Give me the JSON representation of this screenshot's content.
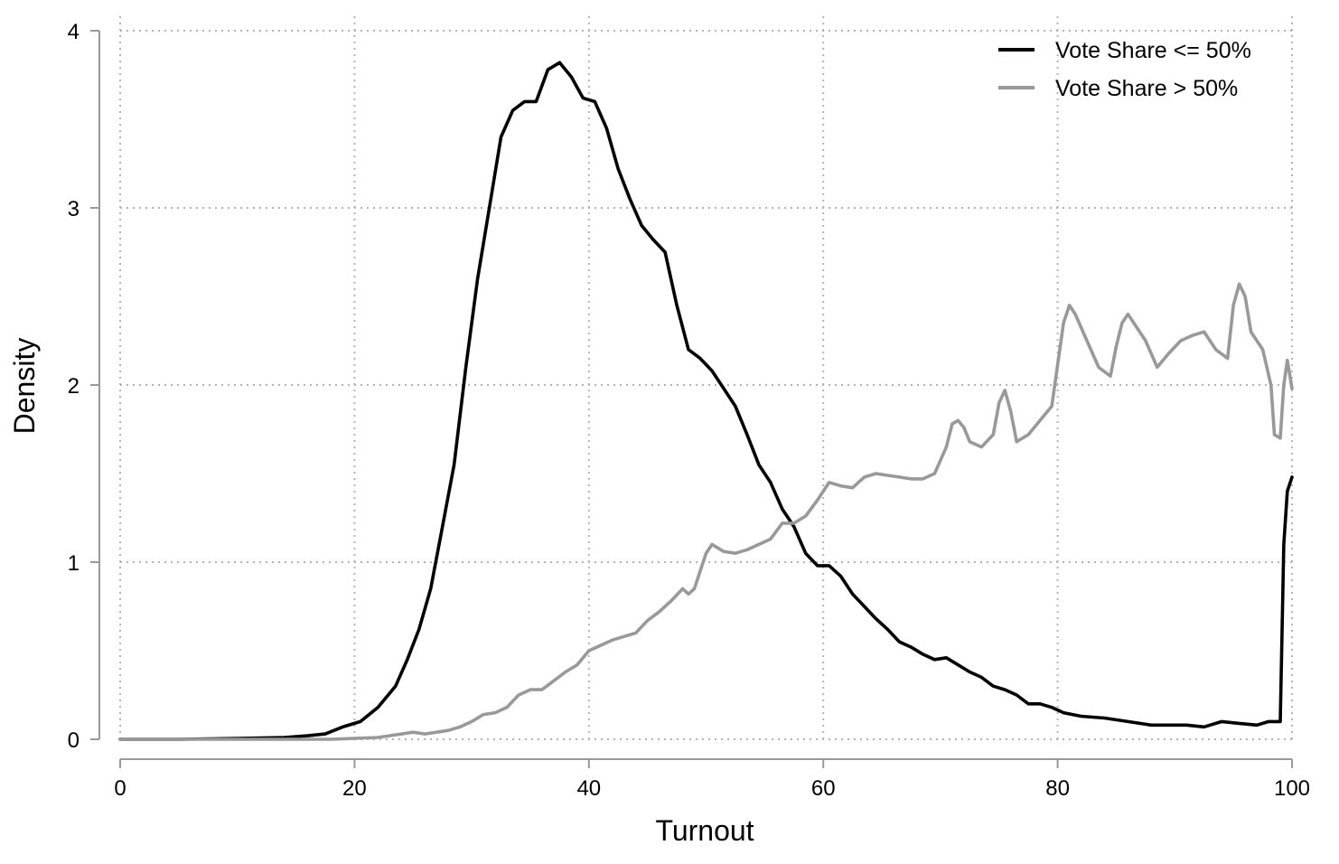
{
  "chart_data": {
    "type": "line",
    "xlabel": "Turnout",
    "ylabel": "Density",
    "xlim": [
      0,
      100
    ],
    "ylim": [
      0,
      4
    ],
    "xticks": [
      0,
      20,
      40,
      60,
      80,
      100
    ],
    "yticks": [
      0,
      1,
      2,
      3,
      4
    ],
    "grid": true,
    "legend_position": "top-right",
    "series": [
      {
        "name": "Vote Share <= 50%",
        "color": "#000000",
        "points": [
          [
            0,
            0
          ],
          [
            5,
            0
          ],
          [
            10,
            0.005
          ],
          [
            14,
            0.01
          ],
          [
            16,
            0.02
          ],
          [
            17.5,
            0.03
          ],
          [
            19,
            0.07
          ],
          [
            20.5,
            0.1
          ],
          [
            22,
            0.18
          ],
          [
            23.5,
            0.3
          ],
          [
            24.5,
            0.45
          ],
          [
            25.5,
            0.62
          ],
          [
            26.5,
            0.85
          ],
          [
            27.5,
            1.2
          ],
          [
            28.5,
            1.55
          ],
          [
            29.5,
            2.1
          ],
          [
            30.5,
            2.6
          ],
          [
            31.5,
            3.0
          ],
          [
            32.5,
            3.4
          ],
          [
            33.5,
            3.55
          ],
          [
            34.5,
            3.6
          ],
          [
            35.5,
            3.6
          ],
          [
            36.5,
            3.78
          ],
          [
            37.5,
            3.82
          ],
          [
            38.5,
            3.74
          ],
          [
            39.5,
            3.62
          ],
          [
            40.5,
            3.6
          ],
          [
            41.5,
            3.45
          ],
          [
            42.5,
            3.22
          ],
          [
            43.5,
            3.05
          ],
          [
            44.5,
            2.9
          ],
          [
            45.5,
            2.82
          ],
          [
            46.5,
            2.75
          ],
          [
            47.5,
            2.45
          ],
          [
            48.5,
            2.2
          ],
          [
            49.5,
            2.15
          ],
          [
            50.5,
            2.08
          ],
          [
            51.5,
            1.98
          ],
          [
            52.5,
            1.88
          ],
          [
            53.5,
            1.72
          ],
          [
            54.5,
            1.55
          ],
          [
            55.5,
            1.45
          ],
          [
            56.5,
            1.3
          ],
          [
            57.5,
            1.2
          ],
          [
            58.5,
            1.05
          ],
          [
            59.5,
            0.98
          ],
          [
            60.5,
            0.98
          ],
          [
            61.5,
            0.92
          ],
          [
            62.5,
            0.82
          ],
          [
            63.5,
            0.75
          ],
          [
            64.5,
            0.68
          ],
          [
            65.5,
            0.62
          ],
          [
            66.5,
            0.55
          ],
          [
            67.5,
            0.52
          ],
          [
            68.5,
            0.48
          ],
          [
            69.5,
            0.45
          ],
          [
            70.5,
            0.46
          ],
          [
            71.5,
            0.42
          ],
          [
            72.5,
            0.38
          ],
          [
            73.5,
            0.35
          ],
          [
            74.5,
            0.3
          ],
          [
            75.5,
            0.28
          ],
          [
            76.5,
            0.25
          ],
          [
            77.5,
            0.2
          ],
          [
            78.5,
            0.2
          ],
          [
            79.5,
            0.18
          ],
          [
            80.5,
            0.15
          ],
          [
            82,
            0.13
          ],
          [
            84,
            0.12
          ],
          [
            86,
            0.1
          ],
          [
            88,
            0.08
          ],
          [
            90,
            0.08
          ],
          [
            91,
            0.08
          ],
          [
            92.5,
            0.07
          ],
          [
            94,
            0.1
          ],
          [
            95.5,
            0.09
          ],
          [
            97,
            0.08
          ],
          [
            98,
            0.1
          ],
          [
            99,
            0.1
          ],
          [
            99.3,
            1.1
          ],
          [
            99.6,
            1.4
          ],
          [
            100,
            1.48
          ]
        ]
      },
      {
        "name": "Vote Share > 50%",
        "color": "#999999",
        "points": [
          [
            0,
            0
          ],
          [
            10,
            0
          ],
          [
            18,
            0
          ],
          [
            20,
            0.005
          ],
          [
            22,
            0.01
          ],
          [
            24,
            0.03
          ],
          [
            25,
            0.04
          ],
          [
            26,
            0.03
          ],
          [
            27,
            0.04
          ],
          [
            28,
            0.05
          ],
          [
            29,
            0.07
          ],
          [
            30,
            0.1
          ],
          [
            31,
            0.14
          ],
          [
            32,
            0.15
          ],
          [
            33,
            0.18
          ],
          [
            34,
            0.25
          ],
          [
            35,
            0.28
          ],
          [
            36,
            0.28
          ],
          [
            37,
            0.33
          ],
          [
            38,
            0.38
          ],
          [
            39,
            0.42
          ],
          [
            40,
            0.5
          ],
          [
            41,
            0.53
          ],
          [
            42,
            0.56
          ],
          [
            43,
            0.58
          ],
          [
            44,
            0.6
          ],
          [
            45,
            0.67
          ],
          [
            46,
            0.72
          ],
          [
            47,
            0.78
          ],
          [
            48,
            0.85
          ],
          [
            48.5,
            0.82
          ],
          [
            49,
            0.85
          ],
          [
            50,
            1.05
          ],
          [
            50.5,
            1.1
          ],
          [
            51.5,
            1.06
          ],
          [
            52.5,
            1.05
          ],
          [
            53.5,
            1.07
          ],
          [
            54.5,
            1.1
          ],
          [
            55.5,
            1.13
          ],
          [
            56.5,
            1.22
          ],
          [
            57.5,
            1.22
          ],
          [
            58.5,
            1.26
          ],
          [
            59.5,
            1.35
          ],
          [
            60.5,
            1.45
          ],
          [
            61.5,
            1.43
          ],
          [
            62.5,
            1.42
          ],
          [
            63.5,
            1.48
          ],
          [
            64.5,
            1.5
          ],
          [
            65.5,
            1.49
          ],
          [
            66.5,
            1.48
          ],
          [
            67.5,
            1.47
          ],
          [
            68.5,
            1.47
          ],
          [
            69.5,
            1.5
          ],
          [
            70.5,
            1.65
          ],
          [
            71,
            1.78
          ],
          [
            71.5,
            1.8
          ],
          [
            72,
            1.76
          ],
          [
            72.5,
            1.68
          ],
          [
            73.5,
            1.65
          ],
          [
            74.5,
            1.72
          ],
          [
            75,
            1.9
          ],
          [
            75.5,
            1.97
          ],
          [
            76,
            1.85
          ],
          [
            76.5,
            1.68
          ],
          [
            77.5,
            1.72
          ],
          [
            78.5,
            1.8
          ],
          [
            79.5,
            1.88
          ],
          [
            80.5,
            2.35
          ],
          [
            81,
            2.45
          ],
          [
            81.5,
            2.4
          ],
          [
            82.5,
            2.25
          ],
          [
            83.5,
            2.1
          ],
          [
            84.5,
            2.05
          ],
          [
            85,
            2.22
          ],
          [
            85.5,
            2.35
          ],
          [
            86,
            2.4
          ],
          [
            86.5,
            2.35
          ],
          [
            87.5,
            2.25
          ],
          [
            88.5,
            2.1
          ],
          [
            89.5,
            2.18
          ],
          [
            90.5,
            2.25
          ],
          [
            91.5,
            2.28
          ],
          [
            92.5,
            2.3
          ],
          [
            93.5,
            2.2
          ],
          [
            94.5,
            2.15
          ],
          [
            95,
            2.45
          ],
          [
            95.5,
            2.57
          ],
          [
            96,
            2.5
          ],
          [
            96.5,
            2.3
          ],
          [
            97.5,
            2.2
          ],
          [
            98.2,
            2.0
          ],
          [
            98.5,
            1.72
          ],
          [
            99,
            1.7
          ],
          [
            99.3,
            2.0
          ],
          [
            99.6,
            2.14
          ],
          [
            100,
            1.98
          ]
        ]
      }
    ]
  }
}
